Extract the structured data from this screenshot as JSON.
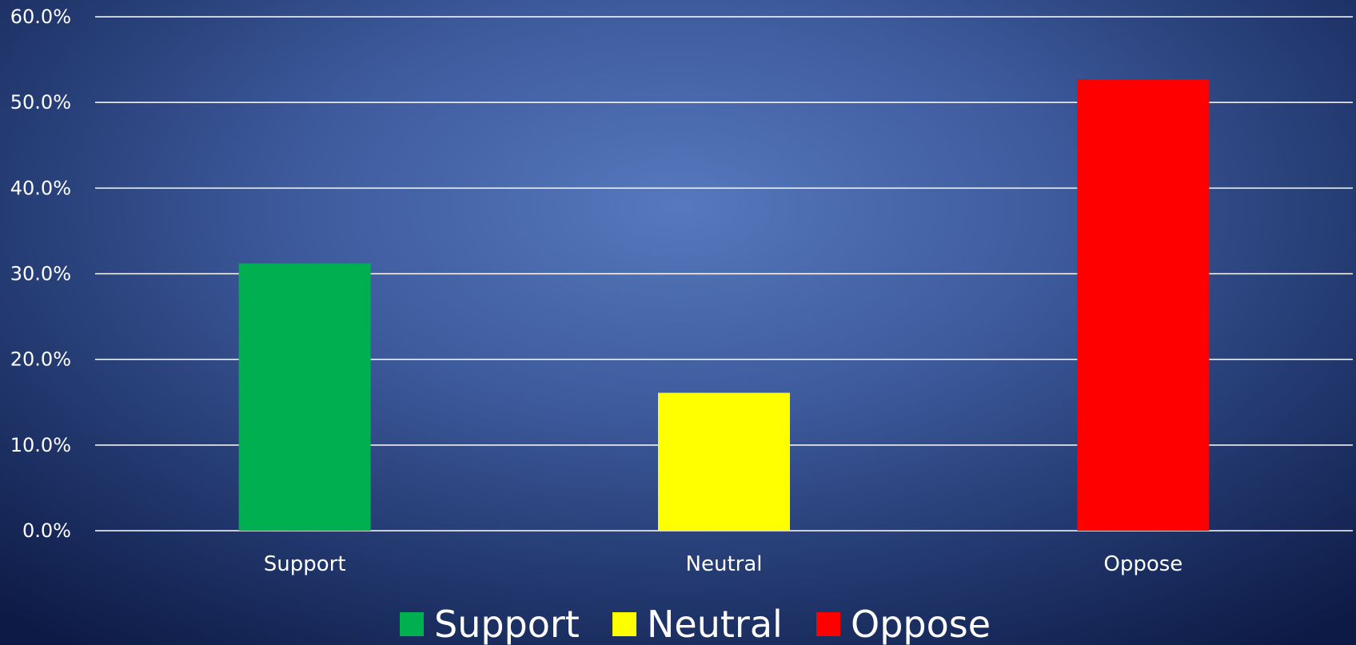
{
  "chart_data": {
    "type": "bar",
    "categories": [
      "Support",
      "Neutral",
      "Oppose"
    ],
    "values": [
      31.2,
      16.1,
      52.7
    ],
    "colors": [
      "#00b050",
      "#ffff00",
      "#ff0000"
    ],
    "ylim": [
      0,
      60
    ],
    "y_ticks": [
      0,
      10,
      20,
      30,
      40,
      50,
      60
    ],
    "y_tick_labels": [
      "0.0%",
      "10.0%",
      "20.0%",
      "30.0%",
      "40.0%",
      "50.0%",
      "60.0%"
    ],
    "grid": true,
    "legend": {
      "position": "bottom",
      "entries": [
        "Support",
        "Neutral",
        "Oppose"
      ]
    },
    "title": "",
    "xlabel": "",
    "ylabel": ""
  }
}
